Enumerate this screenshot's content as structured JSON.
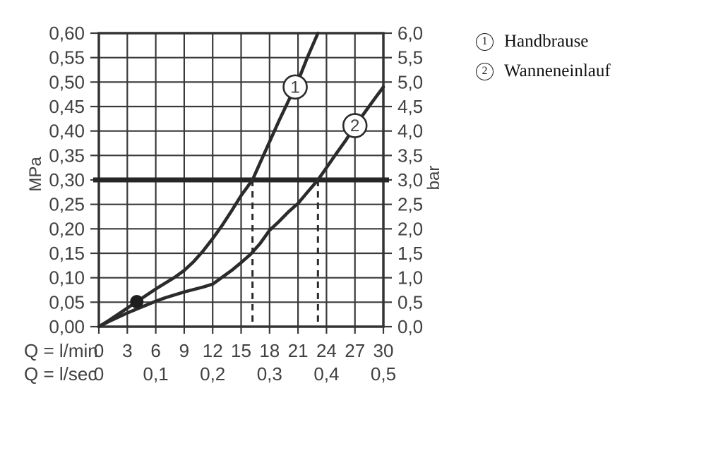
{
  "colors": {
    "grid": "#3a3a3a",
    "border": "#333333",
    "curve": "#2b2b2b",
    "reference_line": "#262626",
    "dashed_line": "#2b2b2b",
    "axis_text": "#414141",
    "marker_fill": "#ffffff",
    "dot": "#1e1e1e",
    "background": "#ffffff",
    "legend_text": "#111111"
  },
  "legend": {
    "items": [
      {
        "symbol": "1",
        "label": "Handbrause"
      },
      {
        "symbol": "2",
        "label": "Wanneneinlauf"
      }
    ]
  },
  "chart_data": {
    "type": "line",
    "title": "",
    "grid": "on",
    "x_axis": {
      "row1_label": "Q = l/min",
      "row1_ticks": [
        "0",
        "3",
        "6",
        "9",
        "12",
        "15",
        "18",
        "21",
        "24",
        "27",
        "30"
      ],
      "row2_label": "Q = l/sec",
      "row2_ticks": [
        "0",
        "0,1",
        "0,2",
        "0,3",
        "0,4",
        "0,5"
      ],
      "row2_positions_lmin": [
        0,
        6,
        12,
        18,
        24,
        30
      ],
      "range_lmin": [
        0,
        30
      ],
      "step_lmin": 3
    },
    "y_axis_left": {
      "unit_label": "MPa",
      "ticks": [
        "0,60",
        "0,55",
        "0,50",
        "0,45",
        "0,40",
        "0,35",
        "0,30",
        "0,25",
        "0,20",
        "0,15",
        "0,10",
        "0,05",
        "0,00"
      ],
      "range_mpa": [
        0,
        0.6
      ],
      "step_mpa": 0.05
    },
    "y_axis_right": {
      "unit_label": "bar",
      "ticks": [
        "6,0",
        "5,5",
        "5,0",
        "4,5",
        "4,0",
        "3,5",
        "3,0",
        "2,5",
        "2,0",
        "1,5",
        "1,0",
        "0,5",
        "0,0"
      ],
      "range_bar": [
        0,
        6.0
      ],
      "step_bar": 0.5
    },
    "reference_line": {
      "value_mpa": 0.3,
      "value_bar": 3.0
    },
    "dashed_drop_lines": [
      {
        "q_lmin": 16.2,
        "from_mpa": 0.3
      },
      {
        "q_lmin": 23.1,
        "from_mpa": 0.3
      }
    ],
    "operating_point_dot": {
      "q_lmin": 4.0,
      "p_mpa": 0.051
    },
    "series": [
      {
        "name": "Handbrause",
        "marker_symbol": "1",
        "marker_at": {
          "q_lmin": 20.7,
          "p_mpa": 0.49
        },
        "points": [
          [
            0,
            0
          ],
          [
            1,
            0.012
          ],
          [
            2,
            0.025
          ],
          [
            3,
            0.038
          ],
          [
            4,
            0.051
          ],
          [
            5,
            0.064
          ],
          [
            6,
            0.077
          ],
          [
            7,
            0.089
          ],
          [
            8,
            0.101
          ],
          [
            9,
            0.115
          ],
          [
            10,
            0.133
          ],
          [
            11,
            0.155
          ],
          [
            12,
            0.18
          ],
          [
            13,
            0.207
          ],
          [
            14,
            0.237
          ],
          [
            15,
            0.268
          ],
          [
            16.2,
            0.3
          ],
          [
            17,
            0.335
          ],
          [
            18,
            0.378
          ],
          [
            19,
            0.421
          ],
          [
            20,
            0.462
          ],
          [
            21,
            0.502
          ],
          [
            22,
            0.551
          ],
          [
            23.1,
            0.6
          ]
        ]
      },
      {
        "name": "Wanneneinlauf",
        "marker_symbol": "2",
        "marker_at": {
          "q_lmin": 27.0,
          "p_mpa": 0.411
        },
        "points": [
          [
            0,
            0
          ],
          [
            1,
            0.01
          ],
          [
            2,
            0.019
          ],
          [
            3,
            0.028
          ],
          [
            4,
            0.036
          ],
          [
            5,
            0.044
          ],
          [
            6,
            0.052
          ],
          [
            7,
            0.059
          ],
          [
            8,
            0.065
          ],
          [
            9,
            0.071
          ],
          [
            10,
            0.076
          ],
          [
            11,
            0.081
          ],
          [
            12,
            0.087
          ],
          [
            13,
            0.101
          ],
          [
            14,
            0.115
          ],
          [
            15,
            0.131
          ],
          [
            16,
            0.148
          ],
          [
            17,
            0.17
          ],
          [
            18,
            0.197
          ],
          [
            19,
            0.215
          ],
          [
            20,
            0.235
          ],
          [
            21,
            0.252
          ],
          [
            22,
            0.275
          ],
          [
            23.1,
            0.3
          ],
          [
            24,
            0.325
          ],
          [
            25,
            0.353
          ],
          [
            26,
            0.38
          ],
          [
            27,
            0.41
          ],
          [
            28,
            0.437
          ],
          [
            29,
            0.464
          ],
          [
            30,
            0.49
          ]
        ]
      }
    ]
  }
}
